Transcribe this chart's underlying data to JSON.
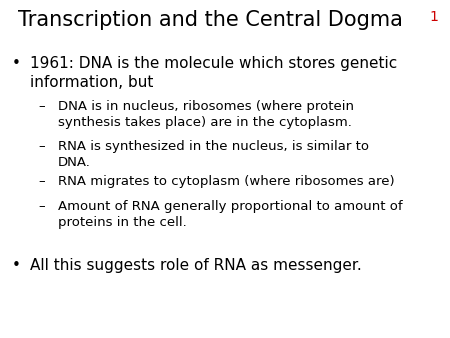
{
  "title": "Transcription and the Central Dogma",
  "slide_number": "1",
  "slide_number_color": "#cc0000",
  "background_color": "#ffffff",
  "title_fontsize": 15,
  "title_color": "#000000",
  "slide_num_fontsize": 10,
  "bullet_fontsize": 11,
  "sub_bullet_fontsize": 9.5,
  "bullet1_text": "1961: DNA is the molecule which stores genetic\ninformation, but",
  "sub_bullets": [
    "DNA is in nucleus, ribosomes (where protein\nsynthesis takes place) are in the cytoplasm.",
    "RNA is synthesized in the nucleus, is similar to\nDNA.",
    "RNA migrates to cytoplasm (where ribosomes are)",
    "Amount of RNA generally proportional to amount of\nproteins in the cell."
  ],
  "last_bullet": "All this suggests role of RNA as messenger."
}
